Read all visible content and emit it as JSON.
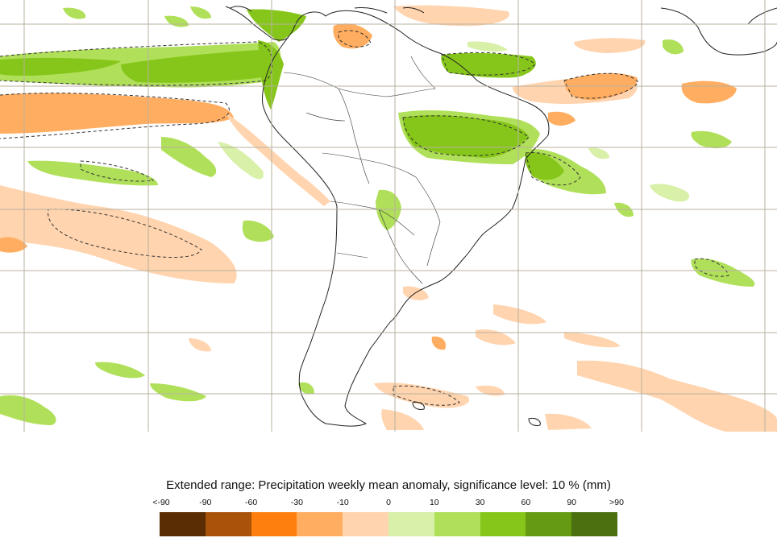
{
  "map": {
    "region": "South America",
    "gridlines": true,
    "coastline_color": "#222222",
    "grid_color": "#b8b2a0"
  },
  "legend": {
    "title": "Extended range: Precipitation weekly mean anomaly, significance level: 10 % (mm)",
    "tick_labels": [
      "<-90",
      "-90",
      "-60",
      "-30",
      "-10",
      "0",
      "10",
      "30",
      "60",
      "90",
      ">90"
    ],
    "colors": [
      "#5a2d05",
      "#a9520a",
      "#ff7f0e",
      "#ffad60",
      "#ffd4ae",
      "#d8f0a8",
      "#b0e05a",
      "#86c61a",
      "#649b12",
      "#4c6f10"
    ]
  }
}
